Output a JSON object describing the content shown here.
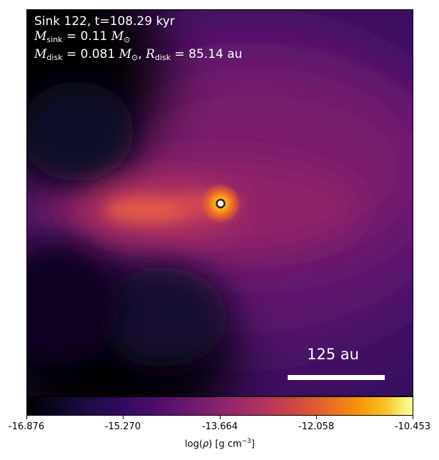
{
  "annotation": {
    "sink_line": "Sink 122, t=108.29 kyr",
    "msink_symbol": "M",
    "msink_sub": "sink",
    "msink_value": "= 0.11",
    "msun_unit": "M",
    "mdisk_symbol": "M",
    "mdisk_sub": "disk",
    "mdisk_value": "= 0.081",
    "rdisk_symbol": "R",
    "rdisk_sub": "disk",
    "rdisk_value": "= 85.14 au"
  },
  "scale_bar": {
    "label": "125 au"
  },
  "colorbar": {
    "colormap": "inferno",
    "ticks": [
      "-16.876",
      "-15.270",
      "-13.664",
      "-12.058",
      "-10.453"
    ],
    "label_prefix": "log(",
    "label_rho": "ρ",
    "label_mid": ") [g cm",
    "label_exp": "−3",
    "label_suffix": "]"
  },
  "colors": {
    "background": "#1b0c41",
    "disk": "#e66a43",
    "sink_marker": "#ffffff"
  }
}
